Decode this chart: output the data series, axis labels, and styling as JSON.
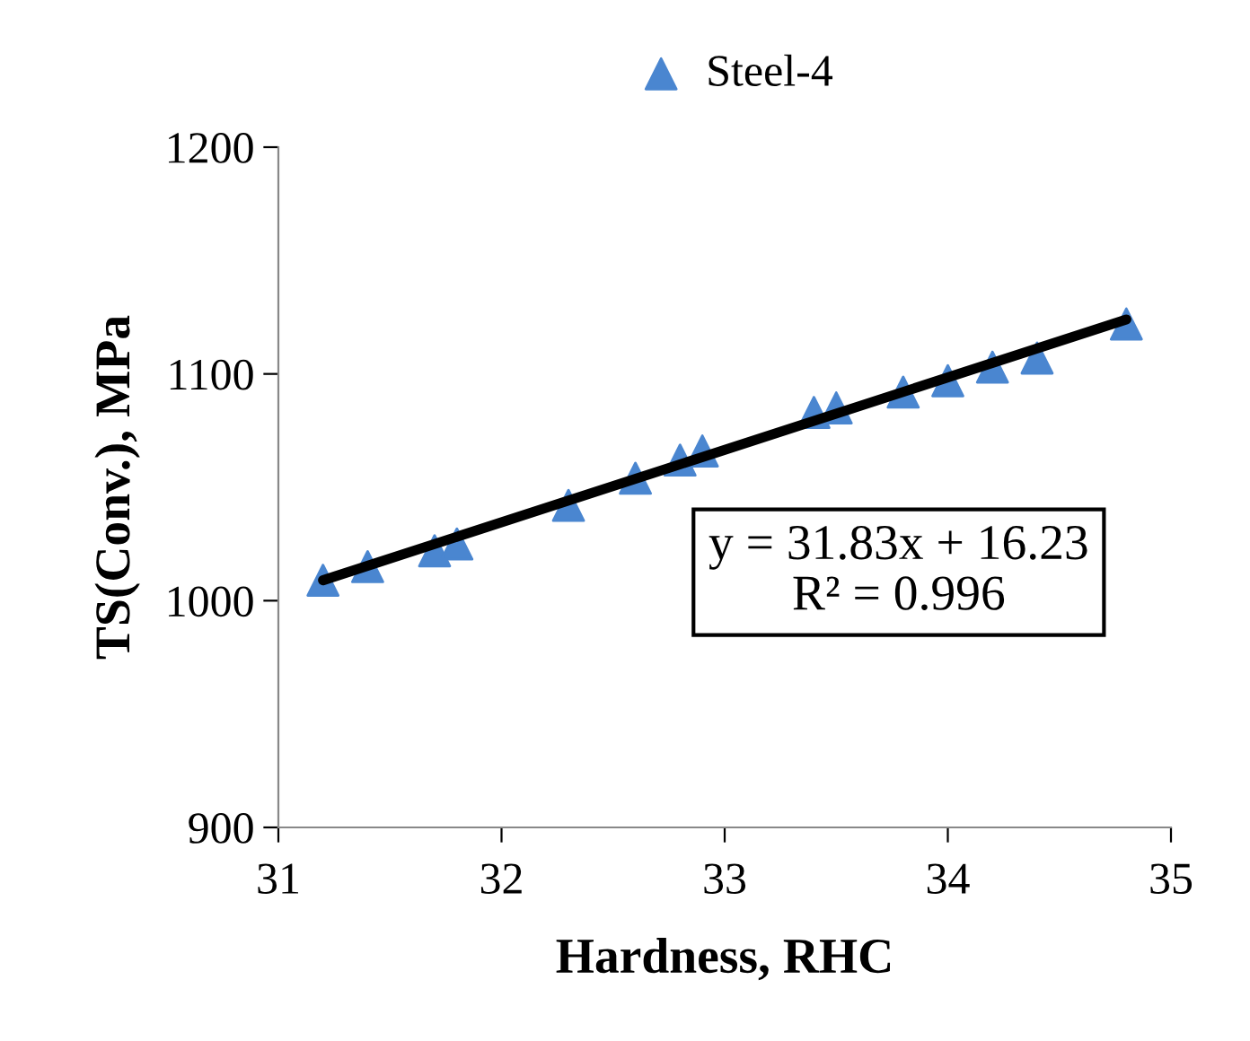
{
  "chart_data": {
    "type": "scatter",
    "xlabel": "Hardness, RHC",
    "ylabel": "TS(Conv.), MPa",
    "xlim": [
      31,
      35
    ],
    "xticks": [
      31,
      32,
      33,
      34,
      35
    ],
    "ylim": [
      900,
      1200
    ],
    "yticks": [
      900,
      1000,
      1100,
      1200
    ],
    "grid": false,
    "legend": "top",
    "series": [
      {
        "name": "Steel-4",
        "marker": "triangle",
        "color": "#4a86d0",
        "x": [
          31.2,
          31.4,
          31.7,
          31.8,
          32.3,
          32.6,
          32.8,
          32.9,
          33.4,
          33.5,
          33.8,
          34.0,
          34.2,
          34.4,
          34.8
        ],
        "values": [
          1009,
          1015,
          1022,
          1025,
          1042,
          1054,
          1062,
          1066,
          1083,
          1085,
          1092,
          1097,
          1103,
          1107,
          1122
        ]
      },
      {
        "type": "line",
        "marker": "none",
        "color": "#000000",
        "x": [
          31.2,
          34.8
        ],
        "values": [
          1009,
          1124
        ]
      }
    ],
    "annotations": [
      "y = 31.83x + 16.23\nR² = 0.996"
    ]
  }
}
